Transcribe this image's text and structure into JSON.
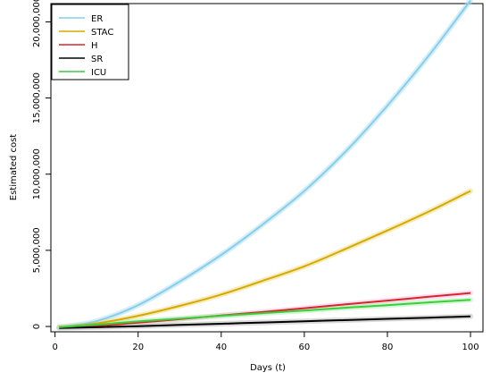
{
  "chart_data": {
    "type": "line",
    "title": "",
    "xlabel": "Days (t)",
    "ylabel": "Estimated cost",
    "xlim": [
      -1,
      103
    ],
    "ylim": [
      -350000,
      21200000
    ],
    "x_ticks": [
      0,
      20,
      40,
      60,
      80,
      100
    ],
    "x_tick_labels": [
      "0",
      "20",
      "40",
      "60",
      "80",
      "100"
    ],
    "y_ticks": [
      0,
      5000000,
      10000000,
      15000000,
      20000000
    ],
    "y_tick_labels": [
      "0",
      "5,000,000",
      "10,000,000",
      "15,000,000",
      "20,000,000"
    ],
    "grid": false,
    "legend_position": "top-left",
    "x": [
      1,
      10,
      20,
      30,
      40,
      50,
      60,
      70,
      80,
      90,
      100
    ],
    "series": [
      {
        "name": "ER",
        "color": "#87ceeb",
        "band_color": "#b0e0f0",
        "values": [
          -50000,
          350000,
          1400000,
          2950000,
          4700000,
          6700000,
          8900000,
          11500000,
          14500000,
          17800000,
          21400000
        ]
      },
      {
        "name": "STAC",
        "color": "#d4aa00",
        "band_color": "#eedd88",
        "values": [
          -50000,
          200000,
          700000,
          1350000,
          2100000,
          3000000,
          3950000,
          5100000,
          6300000,
          7550000,
          8900000
        ]
      },
      {
        "name": "H",
        "color": "#d62728",
        "band_color": "#f8c0e8",
        "values": [
          -50000,
          40000,
          250000,
          480000,
          720000,
          950000,
          1200000,
          1450000,
          1700000,
          1950000,
          2200000
        ]
      },
      {
        "name": "SR",
        "color": "#000000",
        "band_color": "#bbbbbb",
        "values": [
          -100000,
          -50000,
          20000,
          100000,
          180000,
          260000,
          340000,
          420000,
          500000,
          580000,
          660000
        ]
      },
      {
        "name": "ICU",
        "color": "#3ccc3c",
        "band_color": "#b0f0b0",
        "values": [
          -50000,
          120000,
          330000,
          520000,
          700000,
          880000,
          1050000,
          1230000,
          1400000,
          1580000,
          1750000
        ]
      }
    ]
  }
}
